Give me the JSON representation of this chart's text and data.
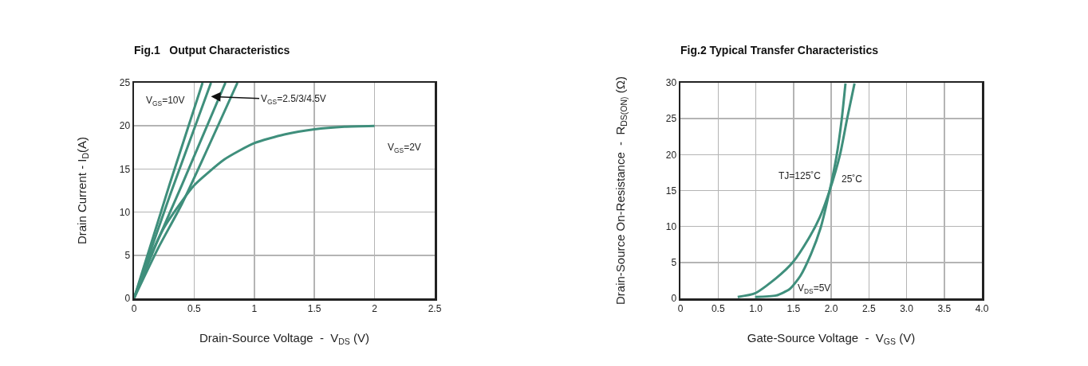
{
  "chart_data": [
    {
      "type": "line",
      "title": "Fig.1   Output Characteristics",
      "xlabel": "Drain-Source Voltage  -  V$_{DS}$ (V)",
      "ylabel": "Drain Current - I$_{D}$(A)",
      "series": [
        {
          "color": "#3f8f7c",
          "x": [
            0,
            0.3,
            0.57
          ],
          "values": [
            0,
            13.4,
            25
          ]
        },
        {
          "color": "#3f8f7c",
          "x": [
            0,
            0.3,
            0.64
          ],
          "values": [
            0,
            12,
            25
          ]
        },
        {
          "color": "#3f8f7c",
          "x": [
            0,
            0.2,
            0.4,
            0.76
          ],
          "values": [
            0,
            6.8,
            13.2,
            25
          ]
        },
        {
          "color": "#3f8f7c",
          "x": [
            0,
            0.2,
            0.4,
            0.86
          ],
          "values": [
            0,
            5.8,
            11,
            25
          ]
        },
        {
          "color": "#3f8f7c",
          "x": [
            0,
            0.1,
            0.25,
            0.4,
            0.5,
            0.75,
            1,
            1.25,
            1.5,
            1.75,
            2
          ],
          "values": [
            0,
            3.8,
            8.2,
            11.3,
            13.1,
            16.1,
            18,
            19,
            19.6,
            19.9,
            20
          ]
        }
      ],
      "annotations": [
        "V$_{GS}$=10V",
        {
          "text": "V$_{GS}$=2.5/3/4.5V",
          "x": 0.64,
          "y": 23.4
        },
        "V$_{GS}$=2V"
      ],
      "xlim": [
        0,
        2.5
      ],
      "xticks": [
        0,
        0.5,
        1,
        1.5,
        2,
        2.5
      ],
      "ylim": [
        0,
        25
      ],
      "yticks": [
        0,
        5,
        10,
        15,
        20,
        25
      ],
      "grid": true,
      "marker": "none",
      "line_style": "solid"
    },
    {
      "type": "line",
      "title": "Fig.2 Typical Transfer Characteristics",
      "xlabel": "Gate-Source Voltage  -  V$_{GS}$ (V)",
      "ylabel": "Drain-Source On-Resistance  -  R$_{DS(ON)}$ (Ω)",
      "series": [
        {
          "color": "#3f8f7c",
          "x": [
            0.76,
            0.99,
            1.27,
            1.49,
            1.7,
            1.85,
            1.98,
            2.12,
            2.21,
            2.31
          ],
          "values": [
            0.2,
            0.7,
            2.8,
            5,
            8.3,
            11.3,
            15,
            20.1,
            24.9,
            29.9
          ]
        },
        {
          "color": "#3f8f7c",
          "x": [
            0.99,
            1.27,
            1.45,
            1.59,
            1.73,
            1.86,
            1.98,
            2.07,
            2.14,
            2.19
          ],
          "values": [
            0.2,
            0.4,
            1.3,
            3.1,
            6.1,
            9.8,
            15,
            19.7,
            24.9,
            29.9
          ]
        }
      ],
      "annotations": [
        "TJ=125˚C",
        "25˚C",
        "V$_{DS}$=5V"
      ],
      "xlim": [
        0,
        4
      ],
      "xticks": [
        0,
        0.5,
        {
          "value": 1,
          "label": "1.0"
        },
        1.5,
        {
          "value": 2,
          "label": "2.0"
        },
        2.5,
        {
          "value": 3,
          "label": "3.0"
        },
        3.5,
        {
          "value": 4,
          "label": "4.0"
        }
      ],
      "ylim": [
        0,
        30
      ],
      "yticks": [
        0,
        5,
        10,
        15,
        20,
        25,
        30
      ],
      "grid": true,
      "marker": "none",
      "line_style": "solid"
    }
  ]
}
